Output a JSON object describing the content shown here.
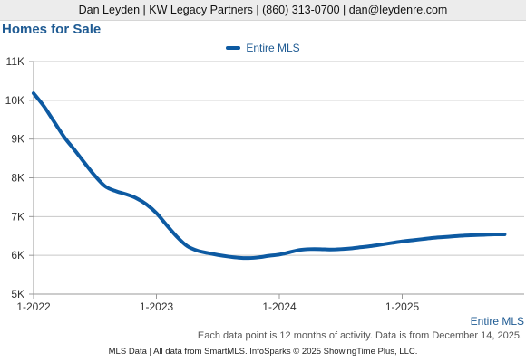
{
  "header": {
    "contact": "Dan Leyden | KW Legacy Partners | (860) 313-0700 | dan@leydenre.com"
  },
  "chart_title": "Homes for Sale",
  "footnote": "Each data point is 12 months of activity. Data is from December 14, 2025.",
  "footer": "MLS Data | All data from SmartMLS. InfoSparks © 2025 ShowingTime Plus, LLC.",
  "colors": {
    "series": "#0d5aa2",
    "grid": "#c8c8c8"
  },
  "chart_data": {
    "type": "line",
    "title": "Homes for Sale",
    "xlabel": "",
    "ylabel": "",
    "ylim": [
      5000,
      11000
    ],
    "y_ticks": [
      5000,
      6000,
      7000,
      8000,
      9000,
      10000,
      11000
    ],
    "y_tick_labels": [
      "5K",
      "6K",
      "7K",
      "8K",
      "9K",
      "10K",
      "11K"
    ],
    "x_tick_labels": [
      "1-2022",
      "1-2023",
      "1-2024",
      "1-2025"
    ],
    "grid": true,
    "legend": "top-center",
    "series_label_right": "Entire MLS",
    "series": [
      {
        "name": "Entire MLS",
        "x": [
          "2022-01",
          "2022-02",
          "2022-03",
          "2022-04",
          "2022-05",
          "2022-06",
          "2022-07",
          "2022-08",
          "2022-09",
          "2022-10",
          "2022-11",
          "2022-12",
          "2023-01",
          "2023-02",
          "2023-03",
          "2023-04",
          "2023-05",
          "2023-06",
          "2023-07",
          "2023-08",
          "2023-09",
          "2023-10",
          "2023-11",
          "2023-12",
          "2024-01",
          "2024-02",
          "2024-03",
          "2024-04",
          "2024-05",
          "2024-06",
          "2024-07",
          "2024-08",
          "2024-09",
          "2024-10",
          "2024-11",
          "2024-12",
          "2025-01",
          "2025-02",
          "2025-03",
          "2025-04",
          "2025-05",
          "2025-06",
          "2025-07",
          "2025-08",
          "2025-09",
          "2025-10",
          "2025-11"
        ],
        "values": [
          10180,
          9850,
          9450,
          9050,
          8720,
          8380,
          8050,
          7780,
          7660,
          7580,
          7480,
          7320,
          7090,
          6780,
          6480,
          6240,
          6120,
          6060,
          6010,
          5970,
          5940,
          5930,
          5950,
          5990,
          6020,
          6080,
          6140,
          6160,
          6160,
          6150,
          6160,
          6180,
          6210,
          6240,
          6280,
          6320,
          6360,
          6390,
          6420,
          6450,
          6470,
          6490,
          6510,
          6520,
          6530,
          6540,
          6540
        ]
      }
    ]
  }
}
